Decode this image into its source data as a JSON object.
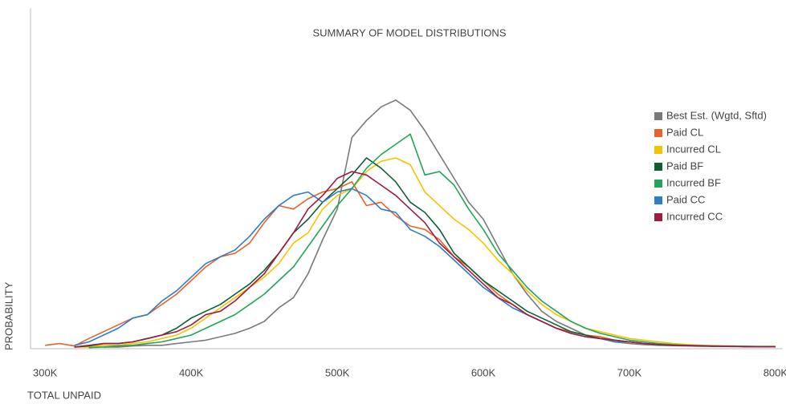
{
  "chart_data": {
    "type": "line",
    "title": "SUMMARY OF MODEL DISTRIBUTIONS",
    "x_label": "TOTAL UNPAID",
    "y_label": "PROBABILITY",
    "x": [
      300000,
      310000,
      320000,
      330000,
      340000,
      350000,
      360000,
      370000,
      380000,
      390000,
      400000,
      410000,
      420000,
      430000,
      440000,
      450000,
      460000,
      470000,
      480000,
      490000,
      500000,
      510000,
      520000,
      530000,
      540000,
      550000,
      560000,
      570000,
      580000,
      590000,
      600000,
      610000,
      620000,
      630000,
      640000,
      650000,
      660000,
      670000,
      680000,
      690000,
      700000,
      710000,
      720000,
      730000,
      740000,
      750000,
      760000,
      770000,
      780000,
      790000,
      800000
    ],
    "xlim": [
      290000,
      805000
    ],
    "xticks": [
      {
        "value": 300000,
        "label": "300K"
      },
      {
        "value": 400000,
        "label": "400K"
      },
      {
        "value": 500000,
        "label": "500K"
      },
      {
        "value": 600000,
        "label": "600K"
      },
      {
        "value": 700000,
        "label": "700K"
      },
      {
        "value": 800000,
        "label": "800K"
      }
    ],
    "ylim": [
      0,
      100
    ],
    "legend": "right",
    "series": [
      {
        "name": "Best Est. (Wgtd, Sftd)",
        "color": "#7a7a7a",
        "values": [
          null,
          null,
          null,
          null,
          0.5,
          0.5,
          0.8,
          1,
          1,
          1.5,
          2,
          2.5,
          3.5,
          4.5,
          6,
          8,
          12,
          15,
          22,
          32,
          41,
          62,
          67,
          71,
          73,
          70,
          64,
          57,
          50,
          43,
          38,
          30,
          22,
          16,
          11,
          8,
          6,
          4,
          3,
          2,
          1.5,
          1.2,
          1,
          0.9,
          0.8,
          0.7,
          0.7,
          0.6,
          0.6,
          0.6,
          0.6
        ]
      },
      {
        "name": "Paid CL",
        "color": "#e8622a",
        "values": [
          1,
          1.5,
          0.8,
          3,
          5,
          7,
          9,
          10,
          13,
          16,
          20,
          24,
          27,
          28,
          31,
          37,
          42,
          41,
          44,
          46,
          47,
          49,
          42,
          43,
          39,
          36,
          35,
          32,
          27,
          24,
          20,
          16,
          13,
          10,
          8,
          6,
          5,
          4,
          3.5,
          2.5,
          2,
          1.5,
          1.2,
          1,
          1,
          0.8,
          0.8,
          0.7,
          0.7,
          0.6,
          0.6
        ]
      },
      {
        "name": "Incurred CL",
        "color": "#f5c400",
        "values": [
          null,
          null,
          0.5,
          0.5,
          1,
          1,
          1.5,
          2,
          3,
          4,
          6,
          9,
          12,
          15,
          18,
          21,
          25,
          31,
          34,
          41,
          45,
          47,
          52,
          55,
          56,
          54,
          46,
          42,
          38,
          35,
          31,
          26,
          22,
          17,
          13,
          10,
          8,
          6,
          5,
          4,
          3,
          2.5,
          2,
          1.5,
          1.2,
          1,
          0.9,
          0.8,
          0.7,
          0.7,
          0.7
        ]
      },
      {
        "name": "Paid BF",
        "color": "#0f5e32",
        "values": [
          null,
          null,
          0.5,
          0.8,
          1.5,
          1.5,
          2,
          3,
          4,
          6,
          9,
          11,
          13,
          16,
          19,
          23,
          28,
          34,
          38,
          43,
          47,
          51,
          56,
          53,
          49,
          43,
          40,
          35,
          28,
          24,
          20,
          17,
          14,
          11,
          9,
          7,
          5,
          4,
          3,
          2.5,
          2,
          1.5,
          1.2,
          1,
          0.9,
          0.8,
          0.7,
          0.7,
          0.6,
          0.6,
          0.6
        ]
      },
      {
        "name": "Incurred BF",
        "color": "#22a55a",
        "values": [
          null,
          null,
          null,
          0.3,
          0.5,
          0.8,
          1,
          1.5,
          2,
          3,
          4,
          6,
          8,
          10,
          13,
          16,
          20,
          24,
          30,
          36,
          42,
          47,
          53,
          57,
          60,
          63,
          51,
          52,
          48,
          41,
          35,
          28,
          23,
          18,
          14,
          11,
          8,
          6,
          4.5,
          3.5,
          2.5,
          2,
          1.5,
          1.2,
          1,
          0.9,
          0.8,
          0.7,
          0.7,
          0.6,
          0.6
        ]
      },
      {
        "name": "Paid CC",
        "color": "#2f7ec4",
        "values": [
          null,
          null,
          1,
          2,
          4,
          6,
          9,
          10,
          14,
          17,
          21,
          25,
          27,
          29,
          33,
          38,
          42,
          45,
          46,
          43,
          46,
          47,
          45,
          41,
          40,
          35,
          33,
          30,
          26,
          22,
          18,
          15,
          12,
          10,
          8,
          6,
          4.5,
          3.5,
          3,
          2,
          2,
          1.5,
          1.2,
          1,
          1,
          0.8,
          0.7,
          0.7,
          0.6,
          0.6,
          0.6
        ]
      },
      {
        "name": "Incurred CC",
        "color": "#9e1b42",
        "values": [
          null,
          null,
          0.5,
          1,
          1.5,
          1.5,
          2,
          3,
          4,
          5,
          7,
          10,
          11,
          14,
          18,
          22,
          28,
          34,
          41,
          45,
          50,
          52,
          51,
          48,
          45,
          41,
          37,
          31,
          27,
          23,
          19,
          15,
          13,
          10,
          8,
          6,
          4.5,
          3.5,
          3,
          2.5,
          2,
          1.5,
          1.2,
          1,
          0.9,
          0.8,
          0.7,
          0.7,
          0.6,
          0.6,
          0.6
        ]
      }
    ]
  }
}
